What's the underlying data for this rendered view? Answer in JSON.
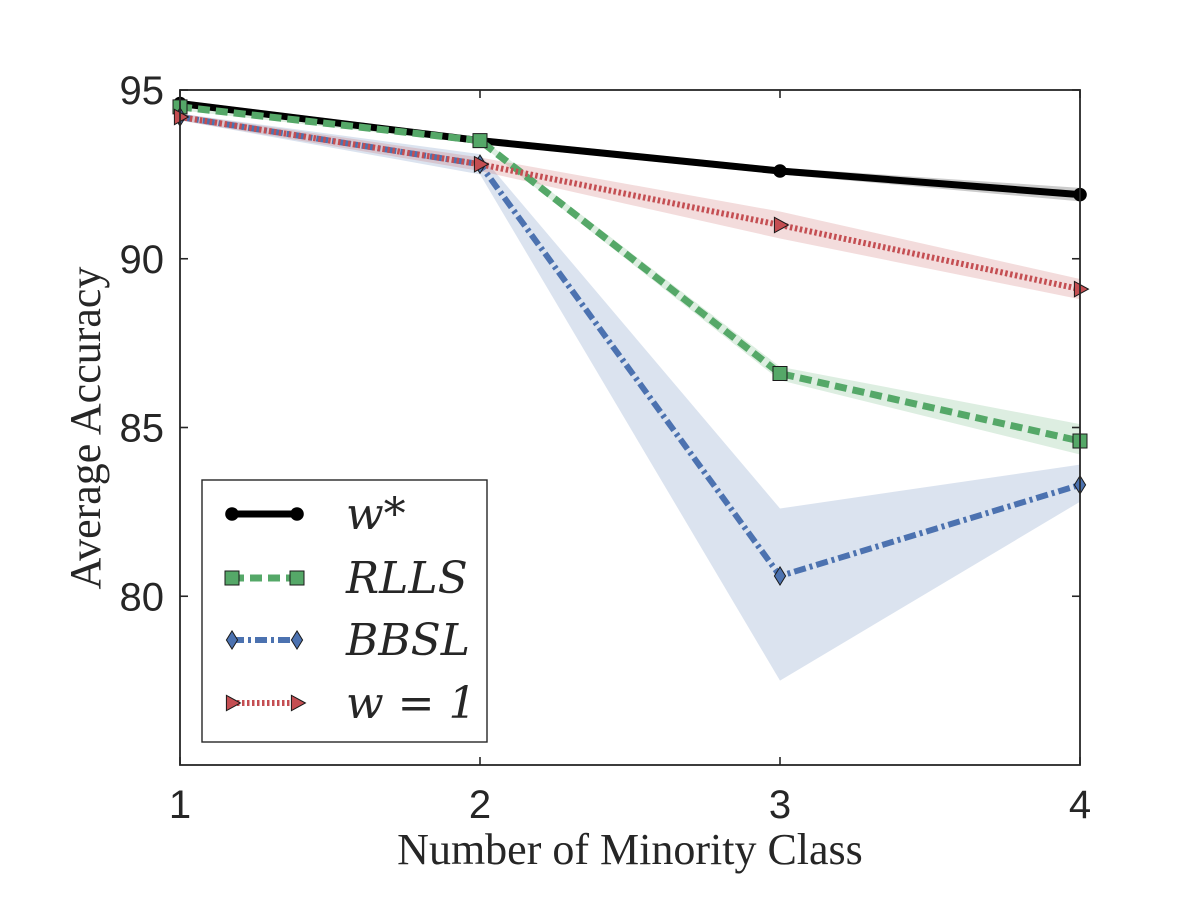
{
  "chart_data": {
    "type": "line",
    "title": "",
    "xlabel": "Number of Minority Class",
    "ylabel": "Average Accuracy",
    "x": [
      1,
      2,
      3,
      4
    ],
    "xticks": [
      "1",
      "2",
      "3",
      "4"
    ],
    "yticks": [
      "80",
      "85",
      "90",
      "95"
    ],
    "xlim": [
      1,
      4
    ],
    "ylim": [
      75,
      95
    ],
    "grid": false,
    "legend_position": "lower-left",
    "series": [
      {
        "name": "w*",
        "values": [
          94.6,
          93.5,
          92.6,
          91.9
        ],
        "band_low": [
          94.5,
          93.4,
          92.5,
          91.7
        ],
        "band_high": [
          94.7,
          93.6,
          92.7,
          92.1
        ],
        "color": "#000000",
        "marker": "circle",
        "dash": "solid"
      },
      {
        "name": "RLLS",
        "values": [
          94.5,
          93.5,
          86.6,
          84.6
        ],
        "band_low": [
          94.4,
          93.4,
          86.4,
          84.2
        ],
        "band_high": [
          94.6,
          93.6,
          86.8,
          85.1
        ],
        "color": "#55a868",
        "marker": "square",
        "dash": "dashed"
      },
      {
        "name": "BBSL",
        "values": [
          94.2,
          92.8,
          80.6,
          83.3
        ],
        "band_low": [
          94.1,
          92.5,
          77.5,
          82.8
        ],
        "band_high": [
          94.3,
          93.1,
          82.6,
          83.9
        ],
        "color": "#4c72b0",
        "marker": "diamond",
        "dash": "dashdot"
      },
      {
        "name": "w = 1",
        "values": [
          94.2,
          92.8,
          91.0,
          89.1
        ],
        "band_low": [
          94.1,
          92.6,
          90.6,
          88.8
        ],
        "band_high": [
          94.3,
          93.0,
          91.4,
          89.4
        ],
        "color": "#c44e52",
        "marker": "triangle-right",
        "dash": "dotted"
      }
    ]
  }
}
